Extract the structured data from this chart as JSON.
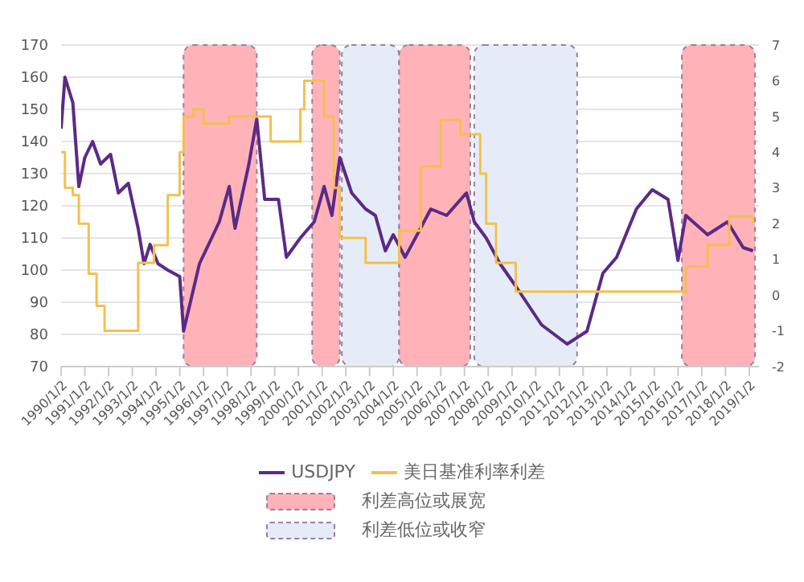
{
  "chart_data": {
    "type": "line",
    "x": [
      "1990-01",
      "1990-03",
      "1990-07",
      "1990-10",
      "1991-01",
      "1991-05",
      "1991-09",
      "1992-02",
      "1992-06",
      "1992-11",
      "1993-04",
      "1993-07",
      "1993-10",
      "1994-02",
      "1994-07",
      "1995-01",
      "1995-03",
      "1995-11",
      "1996-09",
      "1997-02",
      "1997-05",
      "1997-12",
      "1998-04",
      "1998-08",
      "1999-03",
      "1999-07",
      "2000-02",
      "2000-09",
      "2001-02",
      "2001-06",
      "2001-10",
      "2002-04",
      "2002-11",
      "2003-04",
      "2003-09",
      "2004-01",
      "2004-07",
      "2005-08",
      "2006-04",
      "2007-02",
      "2007-06",
      "2007-12",
      "2008-07",
      "2009-03",
      "2010-04",
      "2011-05",
      "2012-03",
      "2012-11",
      "2013-06",
      "2014-04",
      "2014-12",
      "2015-08",
      "2016-01",
      "2016-05",
      "2017-04",
      "2018-02",
      "2018-10",
      "2019-03"
    ],
    "series": [
      {
        "name": "USDJPY",
        "color": "#5b2a86",
        "values": [
          144,
          160,
          152,
          126,
          135,
          140,
          133,
          136,
          124,
          127,
          113,
          102,
          108,
          102,
          100,
          98,
          81,
          102,
          115,
          126,
          113,
          133,
          147,
          122,
          122,
          104,
          110,
          115,
          126,
          117,
          135,
          124,
          119,
          117,
          106,
          111,
          104,
          119,
          117,
          124,
          115,
          110,
          102,
          95,
          83,
          77,
          81,
          99,
          104,
          119,
          125,
          122,
          103,
          117,
          111,
          115,
          107,
          106
        ]
      },
      {
        "name": "美日基准利率利差",
        "type": "step",
        "axis": "y2",
        "color": "#f2c14e",
        "x": [
          "1990-01",
          "1990-03",
          "1990-07",
          "1990-10",
          "1991-03",
          "1991-07",
          "1991-11",
          "1993-04",
          "1993-12",
          "1994-07",
          "1995-01",
          "1995-03",
          "1995-08",
          "1996-01",
          "1997-02",
          "1998-05",
          "1998-11",
          "1999-03",
          "2000-02",
          "2000-04",
          "2000-09",
          "2001-02",
          "2001-07",
          "2001-10",
          "2002-08",
          "2002-11",
          "2003-12",
          "2004-04",
          "2005-03",
          "2006-01",
          "2006-11",
          "2007-04",
          "2007-09",
          "2007-12",
          "2008-05",
          "2009-03",
          "2015-12",
          "2016-05",
          "2017-04",
          "2018-03",
          "2019-03"
        ],
        "values": [
          4.0,
          3.0,
          2.8,
          2.0,
          0.6,
          -0.3,
          -1.0,
          0.9,
          1.4,
          2.8,
          4.0,
          5.0,
          5.2,
          4.8,
          5.0,
          5.0,
          4.3,
          4.3,
          5.2,
          6.0,
          6.0,
          5.0,
          3.0,
          1.6,
          1.6,
          0.9,
          0.9,
          1.8,
          3.6,
          4.9,
          4.5,
          4.5,
          3.4,
          2.0,
          0.9,
          0.1,
          0.1,
          0.8,
          1.4,
          2.2,
          2.0
        ]
      }
    ],
    "xlim": [
      "1990-01",
      "2019-06"
    ],
    "xticks": [
      {
        "value": "1990-01-02",
        "label": "1990/1/2"
      },
      {
        "value": "1991-01-02",
        "label": "1991/1/2"
      },
      {
        "value": "1992-01-02",
        "label": "1992/1/2"
      },
      {
        "value": "1993-01-02",
        "label": "1993/1/2"
      },
      {
        "value": "1994-01-02",
        "label": "1994/1/2"
      },
      {
        "value": "1995-01-02",
        "label": "1995/1/2"
      },
      {
        "value": "1996-01-02",
        "label": "1996/1/2"
      },
      {
        "value": "1997-01-02",
        "label": "1997/1/2"
      },
      {
        "value": "1998-01-02",
        "label": "1998/1/2"
      },
      {
        "value": "1999-01-02",
        "label": "1999/1/2"
      },
      {
        "value": "2000-01-02",
        "label": "2000/1/2"
      },
      {
        "value": "2001-01-02",
        "label": "2001/1/2"
      },
      {
        "value": "2002-01-02",
        "label": "2002/1/2"
      },
      {
        "value": "2003-01-02",
        "label": "2003/1/2"
      },
      {
        "value": "2004-01-02",
        "label": "2004/1/2"
      },
      {
        "value": "2005-01-02",
        "label": "2005/1/2"
      },
      {
        "value": "2006-01-02",
        "label": "2006/1/2"
      },
      {
        "value": "2007-01-02",
        "label": "2007/1/2"
      },
      {
        "value": "2008-01-02",
        "label": "2008/1/2"
      },
      {
        "value": "2009-01-02",
        "label": "2009/1/2"
      },
      {
        "value": "2010-01-02",
        "label": "2010/1/2"
      },
      {
        "value": "2011-01-02",
        "label": "2011/1/2"
      },
      {
        "value": "2012-01-02",
        "label": "2012/1/2"
      },
      {
        "value": "2013-01-02",
        "label": "2013/1/2"
      },
      {
        "value": "2014-01-02",
        "label": "2014/1/2"
      },
      {
        "value": "2015-01-02",
        "label": "2015/1/2"
      },
      {
        "value": "2016-01-02",
        "label": "2016/1/2"
      },
      {
        "value": "2017-01-02",
        "label": "2017/1/2"
      },
      {
        "value": "2018-01-02",
        "label": "2018/1/2"
      },
      {
        "value": "2019-01-02",
        "label": "2019/1/2"
      }
    ],
    "ylim": [
      70,
      170
    ],
    "yticks": [
      70,
      80,
      90,
      100,
      110,
      120,
      130,
      140,
      150,
      160,
      170
    ],
    "y2lim": [
      -2,
      7
    ],
    "y2ticks": [
      -2,
      -1,
      0,
      1,
      2,
      3,
      4,
      5,
      6,
      7
    ],
    "bands": [
      {
        "axis": "x",
        "from": "1995-03",
        "to": "1998-04",
        "label": "利差高位或展宽",
        "color": "#ffb3b8"
      },
      {
        "axis": "x",
        "from": "2000-08",
        "to": "2001-10",
        "color": "#ffb3b8"
      },
      {
        "axis": "x",
        "from": "2001-11",
        "to": "2004-04",
        "label": "利差低位或收窄",
        "color": "#e6ecf7"
      },
      {
        "axis": "x",
        "from": "2004-04",
        "to": "2007-04",
        "color": "#ffb3b8"
      },
      {
        "axis": "x",
        "from": "2007-06",
        "to": "2011-10",
        "color": "#e6ecf7"
      },
      {
        "axis": "x",
        "from": "2016-03",
        "to": "2019-04",
        "color": "#ffb3b8"
      }
    ],
    "grid": "y",
    "legend": "bottom",
    "marker": "none",
    "line_style": "solid"
  }
}
